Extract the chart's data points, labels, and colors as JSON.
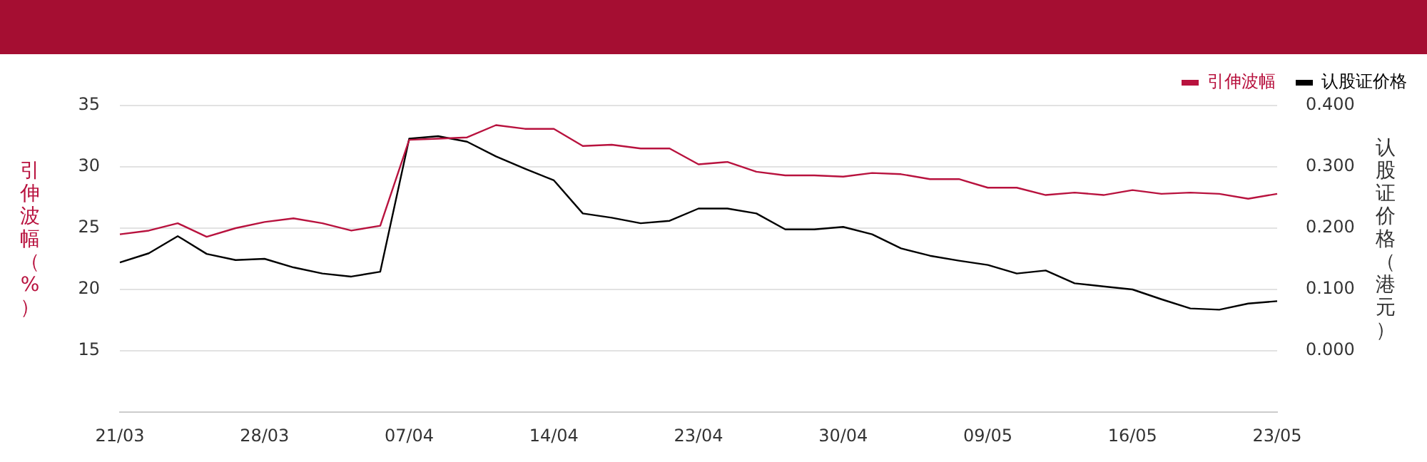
{
  "chart_data": {
    "type": "line",
    "categories": [
      "21/03",
      null,
      null,
      null,
      null,
      "28/03",
      null,
      null,
      null,
      null,
      "07/04",
      null,
      null,
      null,
      null,
      "14/04",
      null,
      null,
      null,
      null,
      "23/04",
      null,
      null,
      null,
      null,
      "30/04",
      null,
      null,
      null,
      null,
      "09/05",
      null,
      null,
      null,
      null,
      "16/05",
      null,
      null,
      null,
      null,
      "23/05"
    ],
    "series": [
      {
        "name": "引伸波幅",
        "color": "#b8123e",
        "values": [
          24.5,
          24.8,
          25.4,
          24.3,
          25.0,
          25.5,
          25.8,
          25.4,
          24.8,
          25.2,
          32.2,
          32.3,
          32.4,
          33.4,
          33.1,
          33.1,
          31.7,
          31.8,
          31.5,
          31.5,
          30.2,
          30.4,
          29.6,
          29.3,
          29.3,
          29.2,
          29.5,
          29.4,
          29.0,
          29.0,
          28.3,
          28.3,
          27.7,
          27.9,
          27.7,
          28.1,
          27.8,
          27.9,
          27.8,
          27.4,
          27.8
        ]
      },
      {
        "name": "认股证价格",
        "color": "#000000",
        "axis": "y2",
        "values": [
          0.144,
          0.159,
          0.187,
          0.158,
          0.148,
          0.15,
          0.136,
          0.126,
          0.121,
          0.129,
          0.346,
          0.35,
          0.341,
          0.317,
          0.297,
          0.278,
          0.224,
          0.217,
          0.208,
          0.212,
          0.232,
          0.232,
          0.224,
          0.198,
          0.198,
          0.202,
          0.19,
          0.167,
          0.155,
          0.147,
          0.14,
          0.126,
          0.131,
          0.11,
          0.105,
          0.1,
          0.084,
          0.069,
          0.067,
          0.077,
          0.081
        ]
      }
    ],
    "ylabel": "引伸波幅（%）",
    "y2label": "认股证价格（港元）",
    "ylim": [
      10,
      35
    ],
    "yticks": [
      15,
      20,
      25,
      30,
      35
    ],
    "y2lim": [
      -0.1,
      0.4
    ],
    "y2ticks": [
      {
        "value": 0,
        "label": "0.000"
      },
      {
        "value": 0.1,
        "label": "0.100"
      },
      {
        "value": 0.2,
        "label": "0.200"
      },
      {
        "value": 0.3,
        "label": "0.300"
      },
      {
        "value": 0.4,
        "label": "0.400"
      }
    ],
    "grid": "y",
    "legend": "top right",
    "marker": "none",
    "line_style": "solid"
  }
}
